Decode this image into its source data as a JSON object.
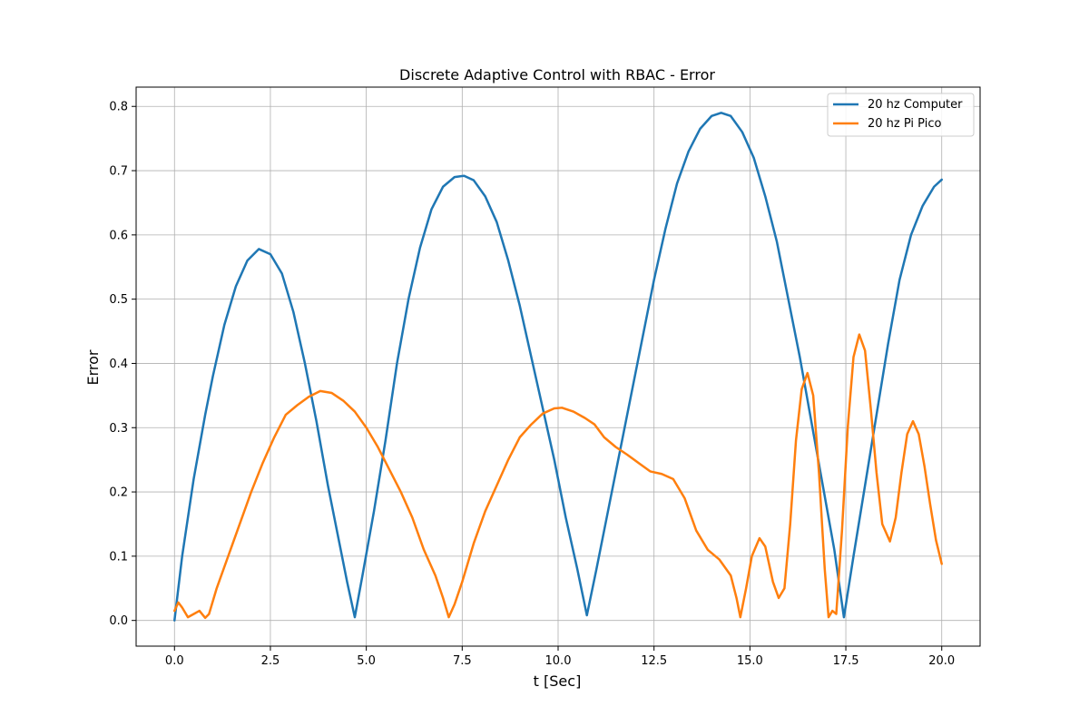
{
  "chart_data": {
    "type": "line",
    "title": "Discrete Adaptive Control with RBAC - Error",
    "xlabel": "t [Sec]",
    "ylabel": "Error",
    "xlim": [
      -1.0,
      21.0
    ],
    "ylim": [
      -0.04,
      0.83
    ],
    "xticks": [
      0.0,
      2.5,
      5.0,
      7.5,
      10.0,
      12.5,
      15.0,
      17.5,
      20.0
    ],
    "xtick_labels": [
      "0.0",
      "2.5",
      "5.0",
      "7.5",
      "10.0",
      "12.5",
      "15.0",
      "17.5",
      "20.0"
    ],
    "yticks": [
      0.0,
      0.1,
      0.2,
      0.3,
      0.4,
      0.5,
      0.6,
      0.7,
      0.8
    ],
    "ytick_labels": [
      "0.0",
      "0.1",
      "0.2",
      "0.3",
      "0.4",
      "0.5",
      "0.6",
      "0.7",
      "0.8"
    ],
    "grid": true,
    "legend_position": "top-right",
    "series": [
      {
        "name": "20 hz Computer",
        "color": "#1f77b4",
        "points": [
          [
            0.0,
            0.0
          ],
          [
            0.2,
            0.1
          ],
          [
            0.5,
            0.22
          ],
          [
            0.8,
            0.32
          ],
          [
            1.0,
            0.38
          ],
          [
            1.3,
            0.46
          ],
          [
            1.6,
            0.52
          ],
          [
            1.9,
            0.56
          ],
          [
            2.2,
            0.578
          ],
          [
            2.5,
            0.57
          ],
          [
            2.8,
            0.54
          ],
          [
            3.1,
            0.48
          ],
          [
            3.4,
            0.4
          ],
          [
            3.7,
            0.31
          ],
          [
            4.0,
            0.21
          ],
          [
            4.3,
            0.12
          ],
          [
            4.5,
            0.06
          ],
          [
            4.7,
            0.005
          ],
          [
            4.9,
            0.07
          ],
          [
            5.2,
            0.17
          ],
          [
            5.5,
            0.28
          ],
          [
            5.8,
            0.4
          ],
          [
            6.1,
            0.5
          ],
          [
            6.4,
            0.58
          ],
          [
            6.7,
            0.64
          ],
          [
            7.0,
            0.675
          ],
          [
            7.3,
            0.69
          ],
          [
            7.55,
            0.692
          ],
          [
            7.8,
            0.685
          ],
          [
            8.1,
            0.66
          ],
          [
            8.4,
            0.62
          ],
          [
            8.7,
            0.56
          ],
          [
            9.0,
            0.49
          ],
          [
            9.3,
            0.41
          ],
          [
            9.6,
            0.33
          ],
          [
            9.9,
            0.25
          ],
          [
            10.2,
            0.16
          ],
          [
            10.5,
            0.08
          ],
          [
            10.75,
            0.008
          ],
          [
            11.0,
            0.08
          ],
          [
            11.3,
            0.17
          ],
          [
            11.6,
            0.26
          ],
          [
            11.9,
            0.35
          ],
          [
            12.2,
            0.44
          ],
          [
            12.5,
            0.53
          ],
          [
            12.8,
            0.61
          ],
          [
            13.1,
            0.68
          ],
          [
            13.4,
            0.73
          ],
          [
            13.7,
            0.765
          ],
          [
            14.0,
            0.785
          ],
          [
            14.25,
            0.79
          ],
          [
            14.5,
            0.785
          ],
          [
            14.8,
            0.76
          ],
          [
            15.1,
            0.72
          ],
          [
            15.4,
            0.66
          ],
          [
            15.7,
            0.59
          ],
          [
            16.0,
            0.5
          ],
          [
            16.3,
            0.41
          ],
          [
            16.6,
            0.31
          ],
          [
            16.9,
            0.21
          ],
          [
            17.2,
            0.11
          ],
          [
            17.45,
            0.005
          ],
          [
            17.7,
            0.1
          ],
          [
            18.0,
            0.21
          ],
          [
            18.3,
            0.32
          ],
          [
            18.6,
            0.43
          ],
          [
            18.9,
            0.53
          ],
          [
            19.2,
            0.6
          ],
          [
            19.5,
            0.645
          ],
          [
            19.8,
            0.675
          ],
          [
            20.0,
            0.686
          ]
        ]
      },
      {
        "name": "20 hz Pi Pico",
        "color": "#ff7f0e",
        "points": [
          [
            0.0,
            0.015
          ],
          [
            0.1,
            0.028
          ],
          [
            0.2,
            0.02
          ],
          [
            0.35,
            0.005
          ],
          [
            0.5,
            0.01
          ],
          [
            0.65,
            0.015
          ],
          [
            0.8,
            0.004
          ],
          [
            0.9,
            0.01
          ],
          [
            1.1,
            0.05
          ],
          [
            1.4,
            0.1
          ],
          [
            1.7,
            0.15
          ],
          [
            2.0,
            0.2
          ],
          [
            2.3,
            0.245
          ],
          [
            2.6,
            0.285
          ],
          [
            2.9,
            0.32
          ],
          [
            3.2,
            0.335
          ],
          [
            3.5,
            0.348
          ],
          [
            3.8,
            0.357
          ],
          [
            4.1,
            0.354
          ],
          [
            4.4,
            0.342
          ],
          [
            4.7,
            0.325
          ],
          [
            5.0,
            0.3
          ],
          [
            5.3,
            0.27
          ],
          [
            5.6,
            0.235
          ],
          [
            5.9,
            0.2
          ],
          [
            6.2,
            0.16
          ],
          [
            6.5,
            0.11
          ],
          [
            6.8,
            0.07
          ],
          [
            7.0,
            0.035
          ],
          [
            7.15,
            0.005
          ],
          [
            7.3,
            0.025
          ],
          [
            7.5,
            0.06
          ],
          [
            7.8,
            0.12
          ],
          [
            8.1,
            0.17
          ],
          [
            8.4,
            0.21
          ],
          [
            8.7,
            0.25
          ],
          [
            9.0,
            0.285
          ],
          [
            9.3,
            0.305
          ],
          [
            9.6,
            0.322
          ],
          [
            9.9,
            0.33
          ],
          [
            10.1,
            0.331
          ],
          [
            10.4,
            0.325
          ],
          [
            10.7,
            0.315
          ],
          [
            10.95,
            0.305
          ],
          [
            11.2,
            0.285
          ],
          [
            11.5,
            0.27
          ],
          [
            11.8,
            0.258
          ],
          [
            12.1,
            0.245
          ],
          [
            12.4,
            0.232
          ],
          [
            12.7,
            0.228
          ],
          [
            13.0,
            0.22
          ],
          [
            13.3,
            0.19
          ],
          [
            13.6,
            0.14
          ],
          [
            13.9,
            0.11
          ],
          [
            14.2,
            0.095
          ],
          [
            14.5,
            0.07
          ],
          [
            14.65,
            0.035
          ],
          [
            14.75,
            0.005
          ],
          [
            14.9,
            0.05
          ],
          [
            15.05,
            0.1
          ],
          [
            15.25,
            0.128
          ],
          [
            15.4,
            0.115
          ],
          [
            15.6,
            0.06
          ],
          [
            15.75,
            0.035
          ],
          [
            15.9,
            0.05
          ],
          [
            16.05,
            0.15
          ],
          [
            16.2,
            0.28
          ],
          [
            16.35,
            0.36
          ],
          [
            16.5,
            0.385
          ],
          [
            16.65,
            0.35
          ],
          [
            16.8,
            0.23
          ],
          [
            16.95,
            0.08
          ],
          [
            17.05,
            0.005
          ],
          [
            17.15,
            0.015
          ],
          [
            17.25,
            0.01
          ],
          [
            17.4,
            0.14
          ],
          [
            17.55,
            0.3
          ],
          [
            17.7,
            0.41
          ],
          [
            17.85,
            0.445
          ],
          [
            18.0,
            0.42
          ],
          [
            18.15,
            0.33
          ],
          [
            18.3,
            0.23
          ],
          [
            18.45,
            0.15
          ],
          [
            18.65,
            0.123
          ],
          [
            18.8,
            0.16
          ],
          [
            18.95,
            0.23
          ],
          [
            19.1,
            0.29
          ],
          [
            19.25,
            0.31
          ],
          [
            19.4,
            0.29
          ],
          [
            19.55,
            0.24
          ],
          [
            19.7,
            0.18
          ],
          [
            19.85,
            0.125
          ],
          [
            20.0,
            0.088
          ]
        ]
      }
    ]
  }
}
